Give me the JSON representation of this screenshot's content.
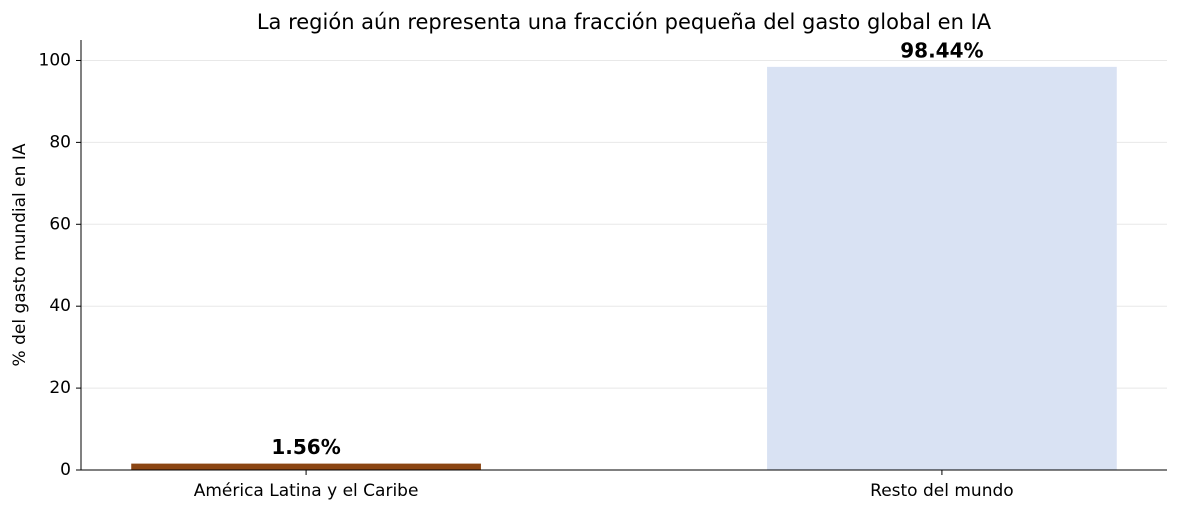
{
  "chart_data": {
    "type": "bar",
    "title": "La región aún representa una fracción pequeña del gasto global en IA",
    "y_label": "% del gasto mundial en IA",
    "categories": [
      "América Latina y el Caribe",
      "Resto del mundo"
    ],
    "values": [
      1.56,
      98.44
    ],
    "value_labels": [
      "1.56%",
      "98.44%"
    ],
    "colors": [
      "#8b4513",
      "#d9e2f3"
    ],
    "ylim": [
      0,
      105
    ],
    "yticks": [
      0,
      20,
      40,
      60,
      80,
      100
    ],
    "grid": true
  }
}
